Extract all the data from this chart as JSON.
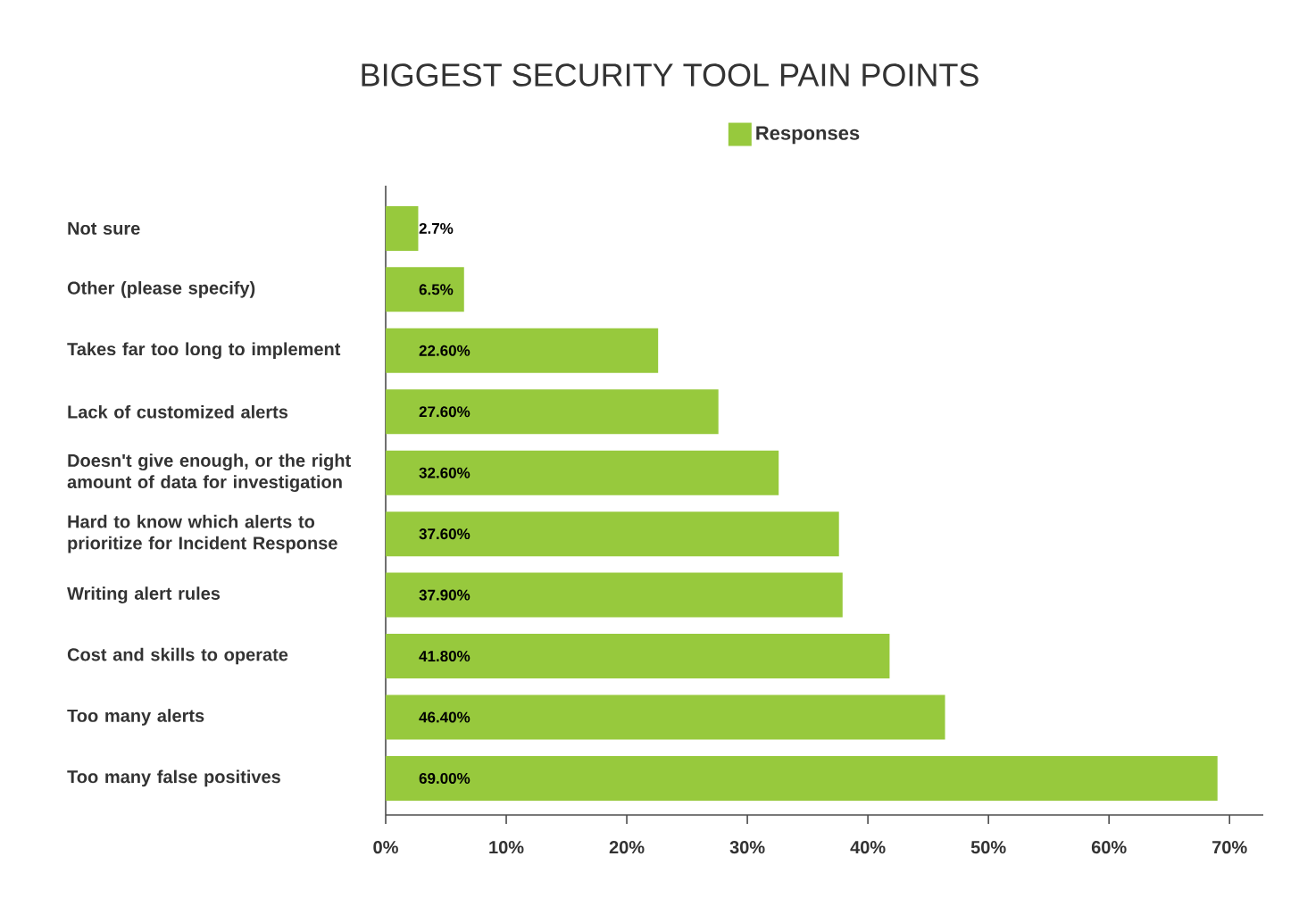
{
  "chart_data": {
    "type": "bar",
    "orientation": "horizontal",
    "title": "BIGGEST SECURITY TOOL PAIN POINTS",
    "categories": [
      "Not sure",
      "Other (please specify)",
      "Takes far too long to implement",
      "Lack of customized alerts",
      "Doesn't give enough, or the right amount of data for investigation",
      "Hard to know which alerts to prioritize for Incident Response",
      "Writing alert rules",
      "Cost and skills to operate",
      "Too many alerts",
      "Too many false positives"
    ],
    "series": [
      {
        "name": "Responses",
        "color": "#97c93d",
        "values": [
          2.7,
          6.5,
          22.6,
          27.6,
          32.6,
          37.6,
          37.9,
          41.8,
          46.4,
          69.0
        ],
        "value_labels": [
          "2.7%",
          "6.5%",
          "22.60%",
          "27.60%",
          "32.60%",
          "37.60%",
          "37.90%",
          "41.80%",
          "46.40%",
          "69.00%"
        ]
      }
    ],
    "xlim": [
      0,
      72.8
    ],
    "xticks": [
      {
        "value": 0,
        "label": "0%"
      },
      {
        "value": 10,
        "label": "10%"
      },
      {
        "value": 20,
        "label": "20%"
      },
      {
        "value": 30,
        "label": "30%"
      },
      {
        "value": 40,
        "label": "40%"
      },
      {
        "value": 50,
        "label": "50%"
      },
      {
        "value": 60,
        "label": "60%"
      },
      {
        "value": 70,
        "label": "70%"
      }
    ],
    "legend": "top",
    "grid": false
  }
}
